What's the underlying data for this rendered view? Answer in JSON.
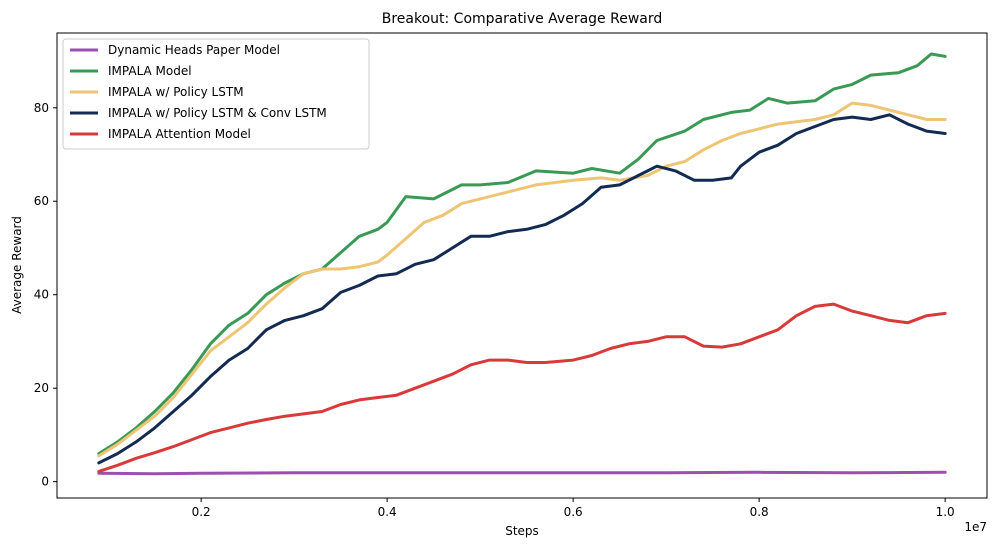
{
  "chart_data": {
    "type": "line",
    "title": "Breakout: Comparative Average Reward",
    "xlabel": "Steps",
    "ylabel": "Average Reward",
    "x_multiplier_label": "1e7",
    "xlim": [
      0.045,
      1.045
    ],
    "ylim": [
      -3.5,
      96
    ],
    "x_ticks": [
      0.2,
      0.4,
      0.6,
      0.8,
      1.0
    ],
    "x_tick_labels": [
      "0.2",
      "0.4",
      "0.6",
      "0.8",
      "1.0"
    ],
    "y_ticks": [
      0,
      20,
      40,
      60,
      80
    ],
    "y_tick_labels": [
      "0",
      "20",
      "40",
      "60",
      "80"
    ],
    "grid": false,
    "legend_position": "top-left",
    "series": [
      {
        "name": "Dynamic Heads Paper Model",
        "color": "#9b4fb0",
        "points": [
          [
            0.09,
            1.8
          ],
          [
            0.15,
            1.7
          ],
          [
            0.2,
            1.8
          ],
          [
            0.3,
            1.9
          ],
          [
            0.4,
            1.9
          ],
          [
            0.5,
            1.9
          ],
          [
            0.6,
            1.9
          ],
          [
            0.7,
            1.9
          ],
          [
            0.8,
            2.0
          ],
          [
            0.9,
            1.9
          ],
          [
            1.0,
            2.0
          ]
        ]
      },
      {
        "name": "IMPALA Model",
        "color": "#3a9a55",
        "points": [
          [
            0.09,
            6
          ],
          [
            0.11,
            8.5
          ],
          [
            0.13,
            11.5
          ],
          [
            0.15,
            15
          ],
          [
            0.17,
            19
          ],
          [
            0.19,
            24
          ],
          [
            0.21,
            29.5
          ],
          [
            0.23,
            33.5
          ],
          [
            0.25,
            36
          ],
          [
            0.27,
            40
          ],
          [
            0.29,
            42.5
          ],
          [
            0.31,
            44.5
          ],
          [
            0.33,
            45.5
          ],
          [
            0.35,
            49
          ],
          [
            0.37,
            52.5
          ],
          [
            0.39,
            54
          ],
          [
            0.4,
            55.5
          ],
          [
            0.42,
            61
          ],
          [
            0.45,
            60.5
          ],
          [
            0.48,
            63.5
          ],
          [
            0.5,
            63.5
          ],
          [
            0.53,
            64
          ],
          [
            0.56,
            66.5
          ],
          [
            0.6,
            66
          ],
          [
            0.62,
            67
          ],
          [
            0.65,
            66
          ],
          [
            0.67,
            69
          ],
          [
            0.69,
            73
          ],
          [
            0.72,
            75
          ],
          [
            0.74,
            77.5
          ],
          [
            0.77,
            79
          ],
          [
            0.79,
            79.5
          ],
          [
            0.81,
            82
          ],
          [
            0.83,
            81
          ],
          [
            0.86,
            81.5
          ],
          [
            0.88,
            84
          ],
          [
            0.9,
            85
          ],
          [
            0.92,
            87
          ],
          [
            0.95,
            87.5
          ],
          [
            0.97,
            89
          ],
          [
            0.985,
            91.5
          ],
          [
            1.0,
            91
          ]
        ]
      },
      {
        "name": "IMPALA w/ Policy LSTM",
        "color": "#eec574",
        "points": [
          [
            0.09,
            5.5
          ],
          [
            0.11,
            8
          ],
          [
            0.13,
            11
          ],
          [
            0.15,
            14
          ],
          [
            0.17,
            18
          ],
          [
            0.19,
            23
          ],
          [
            0.21,
            28
          ],
          [
            0.23,
            31
          ],
          [
            0.25,
            34
          ],
          [
            0.27,
            38
          ],
          [
            0.29,
            41.5
          ],
          [
            0.31,
            44.5
          ],
          [
            0.33,
            45.5
          ],
          [
            0.35,
            45.5
          ],
          [
            0.37,
            46
          ],
          [
            0.39,
            47
          ],
          [
            0.4,
            48.5
          ],
          [
            0.42,
            52
          ],
          [
            0.44,
            55.5
          ],
          [
            0.46,
            57
          ],
          [
            0.48,
            59.5
          ],
          [
            0.5,
            60.5
          ],
          [
            0.53,
            62
          ],
          [
            0.56,
            63.5
          ],
          [
            0.6,
            64.5
          ],
          [
            0.63,
            65
          ],
          [
            0.65,
            64.5
          ],
          [
            0.68,
            65.5
          ],
          [
            0.7,
            67.5
          ],
          [
            0.72,
            68.5
          ],
          [
            0.74,
            71
          ],
          [
            0.76,
            73
          ],
          [
            0.78,
            74.5
          ],
          [
            0.8,
            75.5
          ],
          [
            0.82,
            76.5
          ],
          [
            0.84,
            77
          ],
          [
            0.86,
            77.5
          ],
          [
            0.88,
            78.5
          ],
          [
            0.9,
            81
          ],
          [
            0.92,
            80.5
          ],
          [
            0.94,
            79.5
          ],
          [
            0.96,
            78.5
          ],
          [
            0.98,
            77.5
          ],
          [
            1.0,
            77.5
          ]
        ]
      },
      {
        "name": "IMPALA w/ Policy LSTM & Conv LSTM",
        "color": "#132b52",
        "points": [
          [
            0.09,
            4
          ],
          [
            0.11,
            6
          ],
          [
            0.13,
            8.5
          ],
          [
            0.15,
            11.5
          ],
          [
            0.17,
            15
          ],
          [
            0.19,
            18.5
          ],
          [
            0.21,
            22.5
          ],
          [
            0.23,
            26
          ],
          [
            0.25,
            28.5
          ],
          [
            0.27,
            32.5
          ],
          [
            0.29,
            34.5
          ],
          [
            0.31,
            35.5
          ],
          [
            0.33,
            37
          ],
          [
            0.35,
            40.5
          ],
          [
            0.37,
            42
          ],
          [
            0.39,
            44
          ],
          [
            0.41,
            44.5
          ],
          [
            0.43,
            46.5
          ],
          [
            0.45,
            47.5
          ],
          [
            0.47,
            50
          ],
          [
            0.49,
            52.5
          ],
          [
            0.51,
            52.5
          ],
          [
            0.53,
            53.5
          ],
          [
            0.55,
            54
          ],
          [
            0.57,
            55
          ],
          [
            0.59,
            57
          ],
          [
            0.61,
            59.5
          ],
          [
            0.63,
            63
          ],
          [
            0.65,
            63.5
          ],
          [
            0.67,
            65.5
          ],
          [
            0.69,
            67.5
          ],
          [
            0.71,
            66.5
          ],
          [
            0.73,
            64.5
          ],
          [
            0.75,
            64.5
          ],
          [
            0.77,
            65
          ],
          [
            0.78,
            67.5
          ],
          [
            0.8,
            70.5
          ],
          [
            0.82,
            72
          ],
          [
            0.84,
            74.5
          ],
          [
            0.86,
            76
          ],
          [
            0.88,
            77.5
          ],
          [
            0.9,
            78
          ],
          [
            0.92,
            77.5
          ],
          [
            0.94,
            78.5
          ],
          [
            0.96,
            76.5
          ],
          [
            0.98,
            75
          ],
          [
            1.0,
            74.5
          ]
        ]
      },
      {
        "name": "IMPALA Attention Model",
        "color": "#d83a3a",
        "points": [
          [
            0.09,
            2.2
          ],
          [
            0.11,
            3.5
          ],
          [
            0.13,
            5
          ],
          [
            0.15,
            6.2
          ],
          [
            0.17,
            7.5
          ],
          [
            0.19,
            9
          ],
          [
            0.21,
            10.5
          ],
          [
            0.23,
            11.5
          ],
          [
            0.25,
            12.5
          ],
          [
            0.27,
            13.3
          ],
          [
            0.29,
            14
          ],
          [
            0.31,
            14.5
          ],
          [
            0.33,
            15
          ],
          [
            0.35,
            16.5
          ],
          [
            0.37,
            17.5
          ],
          [
            0.39,
            18
          ],
          [
            0.41,
            18.5
          ],
          [
            0.43,
            20
          ],
          [
            0.45,
            21.5
          ],
          [
            0.47,
            23
          ],
          [
            0.49,
            25
          ],
          [
            0.51,
            26
          ],
          [
            0.53,
            26
          ],
          [
            0.55,
            25.5
          ],
          [
            0.57,
            25.5
          ],
          [
            0.6,
            26
          ],
          [
            0.62,
            27
          ],
          [
            0.64,
            28.5
          ],
          [
            0.66,
            29.5
          ],
          [
            0.68,
            30
          ],
          [
            0.7,
            31
          ],
          [
            0.72,
            31
          ],
          [
            0.74,
            29
          ],
          [
            0.76,
            28.8
          ],
          [
            0.78,
            29.5
          ],
          [
            0.8,
            31
          ],
          [
            0.82,
            32.5
          ],
          [
            0.84,
            35.5
          ],
          [
            0.86,
            37.5
          ],
          [
            0.88,
            38
          ],
          [
            0.9,
            36.5
          ],
          [
            0.92,
            35.5
          ],
          [
            0.94,
            34.5
          ],
          [
            0.96,
            34
          ],
          [
            0.98,
            35.5
          ],
          [
            1.0,
            36
          ]
        ]
      }
    ]
  }
}
